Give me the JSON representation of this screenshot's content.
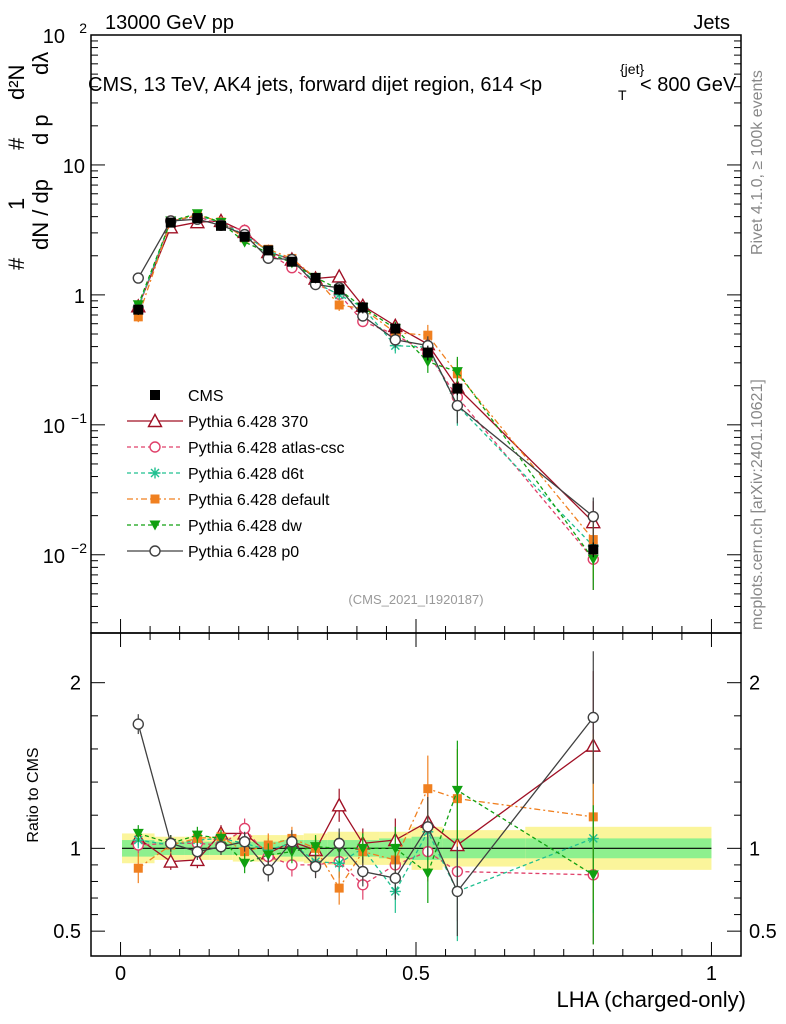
{
  "header": {
    "left": "13000 GeV pp",
    "right": "Jets"
  },
  "side_text": {
    "rivet": "Rivet 4.1.0, ≥ 100k events",
    "mcplots": "mcplots.cern.ch [arXiv:2401.10621]"
  },
  "watermark": "(CMS_2021_I1920187)",
  "chart_data": {
    "type": "line",
    "title": "CMS, 13 TeV, AK4 jets, forward dijet region, 614 <p_T^{jet}< 800 GeV",
    "title_parts": {
      "main": "CMS, 13 TeV, AK4 jets, forward dijet region, 614 <p",
      "sup": "{jet}",
      "sub": "T",
      "tail": "< 800 GeV"
    },
    "ylabel": "1/(dN/dpT) d²N/(dpT dλ)",
    "ylabel_parts": {
      "one": "1",
      "frac_num": "d²N",
      "frac_den": "dN / dp",
      "t": "T",
      "dp": "d p",
      "dl": "dλ",
      "hash": "#"
    },
    "xlabel": "LHA (charged-only)",
    "ratio_ylabel": "Ratio to CMS",
    "x_range": [
      -0.05,
      1.05
    ],
    "y_range": [
      0.0025,
      100
    ],
    "ratio_range": [
      0.35,
      2.3
    ],
    "x_ticks": [
      "0",
      "0.5",
      "1"
    ],
    "y_ticks": [
      {
        "base": "10",
        "exp": "2",
        "v": 100
      },
      {
        "base": "10",
        "exp": "",
        "v": 10
      },
      {
        "base": "1",
        "exp": "",
        "v": 1
      },
      {
        "base": "10",
        "exp": "−1",
        "v": 0.1
      },
      {
        "base": "10",
        "exp": "−2",
        "v": 0.01
      }
    ],
    "ratio_ticks": [
      "0.5",
      "1",
      "2"
    ],
    "x": [
      0.03,
      0.085,
      0.13,
      0.17,
      0.21,
      0.25,
      0.29,
      0.33,
      0.37,
      0.41,
      0.465,
      0.52,
      0.57,
      0.8
    ],
    "data": {
      "name": "CMS",
      "values": [
        0.77,
        3.6,
        3.9,
        3.4,
        2.8,
        2.2,
        1.8,
        1.35,
        1.1,
        0.8,
        0.55,
        0.36,
        0.19,
        0.011
      ],
      "band_inner": [
        0.05,
        0.04,
        0.04,
        0.04,
        0.04,
        0.04,
        0.05,
        0.05,
        0.05,
        0.05,
        0.06,
        0.07,
        0.06,
        0.06
      ],
      "band_outer": [
        0.09,
        0.07,
        0.07,
        0.07,
        0.08,
        0.08,
        0.08,
        0.09,
        0.1,
        0.1,
        0.1,
        0.13,
        0.11,
        0.13
      ]
    },
    "series": [
      {
        "name": "Pythia 6.428 370",
        "color": "#a01025",
        "dash": "",
        "marker": "triangle-open",
        "ratio": [
          1.06,
          0.92,
          0.93,
          1.09,
          1.09,
          0.97,
          1.04,
          0.99,
          1.26,
          1.03,
          1.05,
          1.16,
          1.02,
          1.62
        ],
        "rerr": [
          0.05,
          0.05,
          0.05,
          0.05,
          0.06,
          0.07,
          0.07,
          0.07,
          0.1,
          0.09,
          0.13,
          0.18,
          0.3,
          0.45
        ]
      },
      {
        "name": "Pythia 6.428 atlas-csc",
        "color": "#e0406a",
        "dash": "4,3",
        "marker": "circle-open",
        "ratio": [
          1.02,
          1.03,
          1.03,
          1.02,
          1.12,
          0.95,
          0.9,
          0.9,
          0.92,
          0.78,
          0.9,
          0.98,
          0.86,
          0.84
        ],
        "rerr": [
          0.05,
          0.05,
          0.05,
          0.05,
          0.06,
          0.07,
          0.07,
          0.07,
          0.09,
          0.09,
          0.13,
          0.18,
          0.3,
          0.42
        ]
      },
      {
        "name": "Pythia 6.428 d6t",
        "color": "#20c090",
        "dash": "4,3",
        "marker": "star",
        "ratio": [
          1.05,
          1.02,
          1.05,
          1.06,
          1.03,
          0.99,
          1.03,
          0.92,
          0.91,
          1.0,
          0.74,
          1.1,
          0.74,
          1.06
        ],
        "rerr": [
          0.05,
          0.05,
          0.05,
          0.05,
          0.06,
          0.07,
          0.07,
          0.07,
          0.09,
          0.09,
          0.13,
          0.18,
          0.3,
          0.45
        ]
      },
      {
        "name": "Pythia 6.428 default",
        "color": "#f08020",
        "dash": "6,3,2,3",
        "marker": "square",
        "ratio": [
          0.88,
          1.02,
          1.06,
          1.07,
          0.98,
          1.02,
          1.06,
          1.0,
          0.76,
          0.98,
          0.93,
          1.36,
          1.3,
          1.19
        ],
        "rerr": [
          0.09,
          0.05,
          0.05,
          0.05,
          0.06,
          0.07,
          0.07,
          0.07,
          0.1,
          0.09,
          0.13,
          0.2,
          0.3,
          0.5
        ]
      },
      {
        "name": "Pythia 6.428 dw",
        "color": "#10a010",
        "dash": "4,3",
        "marker": "triangle-down",
        "ratio": [
          1.09,
          1.03,
          1.08,
          1.06,
          0.91,
          0.96,
          0.98,
          1.01,
          1.0,
          1.0,
          1.0,
          0.85,
          1.35,
          0.84
        ],
        "rerr": [
          0.05,
          0.05,
          0.05,
          0.05,
          0.06,
          0.07,
          0.07,
          0.07,
          0.09,
          0.09,
          0.13,
          0.18,
          0.3,
          0.42
        ]
      },
      {
        "name": "Pythia 6.428 p0",
        "color": "#404040",
        "dash": "",
        "marker": "circle-open",
        "ratio": [
          1.75,
          1.03,
          0.98,
          1.01,
          1.04,
          0.87,
          1.04,
          0.89,
          1.03,
          0.86,
          0.82,
          1.13,
          0.74,
          1.79
        ],
        "rerr": [
          0.06,
          0.05,
          0.05,
          0.05,
          0.06,
          0.07,
          0.07,
          0.07,
          0.09,
          0.09,
          0.13,
          0.18,
          0.27,
          0.4
        ]
      }
    ]
  }
}
